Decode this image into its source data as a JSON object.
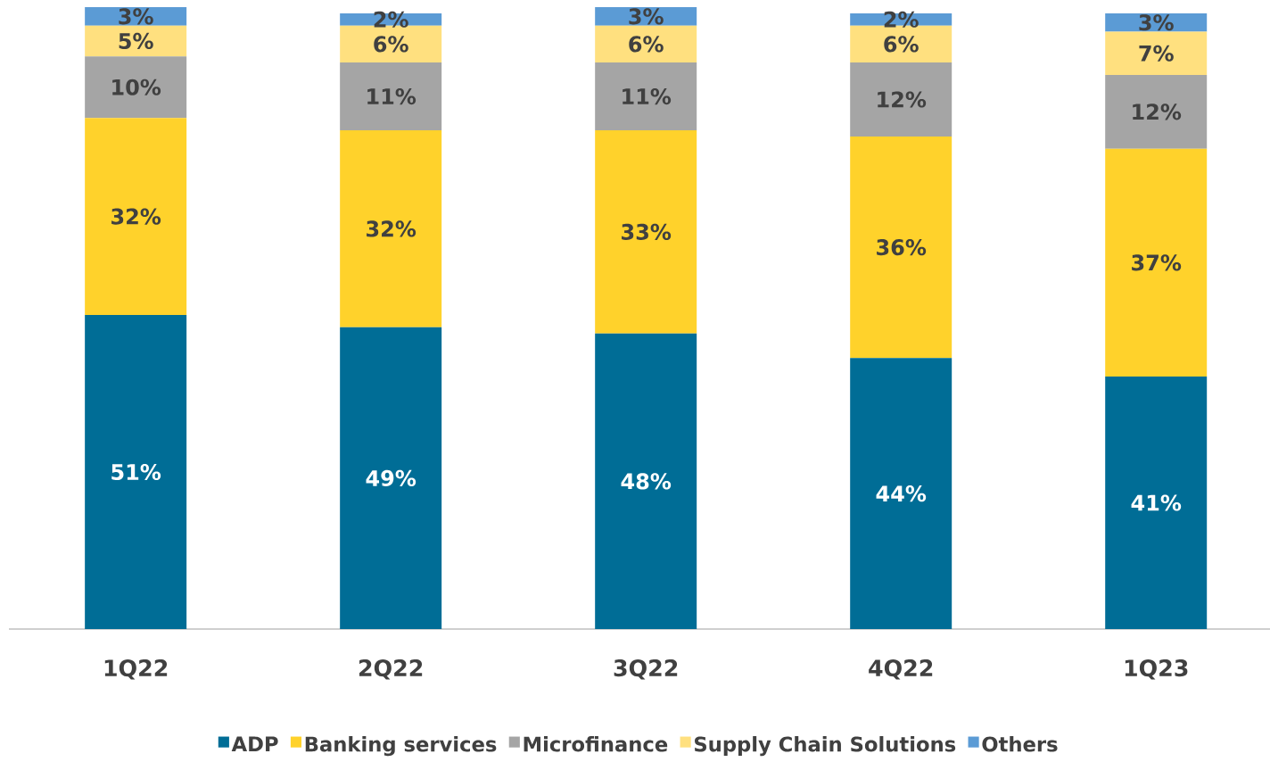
{
  "chart_data": {
    "type": "bar",
    "stacked": true,
    "legend": "bottom",
    "categories": [
      "1Q22",
      "2Q22",
      "3Q22",
      "4Q22",
      "1Q23"
    ],
    "series": [
      {
        "name": "ADP",
        "color": "#006d96",
        "values": [
          51,
          49,
          48,
          44,
          41
        ],
        "value_labels": [
          "51%",
          "49%",
          "48%",
          "44%",
          "41%"
        ]
      },
      {
        "name": "Banking services",
        "color": "#ffd22b",
        "values": [
          32,
          32,
          33,
          36,
          37
        ],
        "value_labels": [
          "32%",
          "32%",
          "33%",
          "36%",
          "37%"
        ]
      },
      {
        "name": "Microfinance",
        "color": "#a5a5a5",
        "values": [
          10,
          11,
          11,
          12,
          12
        ],
        "value_labels": [
          "10%",
          "11%",
          "11%",
          "12%",
          "12%"
        ]
      },
      {
        "name": "Supply Chain Solutions",
        "color": "#ffe07f",
        "values": [
          5,
          6,
          6,
          6,
          7
        ],
        "value_labels": [
          "5%",
          "6%",
          "6%",
          "6%",
          "7%"
        ]
      },
      {
        "name": "Others",
        "color": "#5b9bd5",
        "values": [
          3,
          2,
          3,
          2,
          3
        ],
        "value_labels": [
          "3%",
          "2%",
          "3%",
          "2%",
          "3%"
        ]
      }
    ]
  }
}
